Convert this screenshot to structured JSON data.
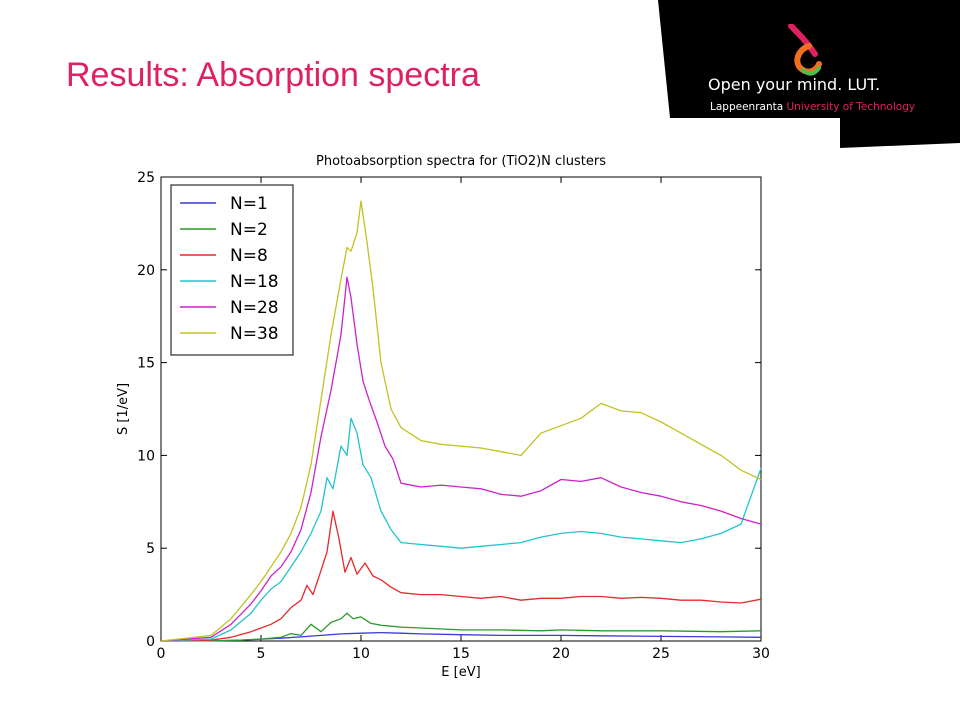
{
  "slide": {
    "title": "Results: Absorption spectra"
  },
  "logo": {
    "slogan": "Open your mind. LUT.",
    "sub_part1": "Lappeenranta",
    "sub_part2": "University of Technology",
    "mark_icon": "lut-ampersand-logo-icon",
    "colors": {
      "black": "#000000",
      "red": "#e0215f",
      "orange": "#f07020",
      "green": "#4cc04c"
    }
  },
  "chart_data": {
    "type": "line",
    "title": "Photoabsorption spectra for (TiO2)N clusters",
    "xlabel": "E [eV]",
    "ylabel": "S [1/eV]",
    "xlim": [
      0,
      30
    ],
    "ylim": [
      0,
      25
    ],
    "xticks": [
      "0",
      "5",
      "10",
      "15",
      "20",
      "25",
      "30"
    ],
    "yticks": [
      "0",
      "5",
      "10",
      "15",
      "20",
      "25"
    ],
    "grid": false,
    "legend_position": "top-left",
    "series": [
      {
        "name": "N=1",
        "color": "#3a3ad6",
        "x": [
          0,
          2,
          3,
          4,
          5,
          6,
          7,
          8,
          9,
          10,
          11,
          12,
          13,
          15,
          17,
          20,
          22,
          25,
          28,
          30
        ],
        "y": [
          0,
          0.01,
          0.02,
          0.05,
          0.1,
          0.15,
          0.22,
          0.3,
          0.38,
          0.42,
          0.45,
          0.42,
          0.38,
          0.34,
          0.3,
          0.3,
          0.28,
          0.25,
          0.22,
          0.2
        ]
      },
      {
        "name": "N=2",
        "color": "#2a9a2a",
        "x": [
          0,
          3,
          4,
          5,
          6,
          6.5,
          7,
          7.5,
          8,
          8.5,
          9,
          9.3,
          9.6,
          10,
          10.5,
          11,
          12,
          13,
          15,
          17,
          19,
          20,
          22,
          25,
          28,
          30
        ],
        "y": [
          0,
          0.02,
          0.05,
          0.1,
          0.2,
          0.4,
          0.3,
          0.9,
          0.5,
          1.0,
          1.2,
          1.5,
          1.2,
          1.3,
          0.95,
          0.85,
          0.75,
          0.7,
          0.6,
          0.6,
          0.55,
          0.6,
          0.55,
          0.55,
          0.5,
          0.55
        ]
      },
      {
        "name": "N=8",
        "color": "#e52a2a",
        "x": [
          0,
          2.5,
          3.5,
          4.5,
          5,
          5.5,
          6,
          6.5,
          7,
          7.3,
          7.6,
          8,
          8.3,
          8.6,
          8.9,
          9.2,
          9.5,
          9.8,
          10.2,
          10.6,
          11,
          11.5,
          12,
          13,
          14,
          15,
          16,
          17,
          18,
          19,
          20,
          21,
          22,
          23,
          24,
          25,
          26,
          27,
          28,
          29,
          30
        ],
        "y": [
          0,
          0.05,
          0.2,
          0.5,
          0.7,
          0.9,
          1.2,
          1.8,
          2.2,
          3.0,
          2.5,
          3.8,
          4.8,
          7.0,
          5.5,
          3.7,
          4.5,
          3.6,
          4.2,
          3.5,
          3.3,
          2.9,
          2.6,
          2.5,
          2.5,
          2.4,
          2.3,
          2.4,
          2.2,
          2.3,
          2.3,
          2.4,
          2.4,
          2.3,
          2.35,
          2.3,
          2.2,
          2.2,
          2.1,
          2.05,
          2.25
        ]
      },
      {
        "name": "N=18",
        "color": "#22c4cc",
        "x": [
          0,
          2.5,
          3.5,
          4.5,
          5,
          5.5,
          6,
          6.5,
          7,
          7.5,
          8,
          8.3,
          8.6,
          9,
          9.3,
          9.5,
          9.8,
          10.1,
          10.5,
          11,
          11.5,
          12,
          13,
          14,
          15,
          16,
          17,
          18,
          19,
          20,
          21,
          22,
          23,
          24,
          25,
          26,
          27,
          28,
          29,
          29.5,
          30
        ],
        "y": [
          0,
          0.1,
          0.6,
          1.5,
          2.2,
          2.8,
          3.2,
          4.0,
          4.8,
          5.8,
          7.0,
          8.8,
          8.2,
          10.5,
          10.0,
          12.0,
          11.2,
          9.5,
          8.8,
          7.0,
          6.0,
          5.3,
          5.2,
          5.1,
          5.0,
          5.1,
          5.2,
          5.3,
          5.6,
          5.8,
          5.9,
          5.8,
          5.6,
          5.5,
          5.4,
          5.3,
          5.5,
          5.8,
          6.3,
          7.8,
          9.3
        ]
      },
      {
        "name": "N=28",
        "color": "#cc22cc",
        "x": [
          0,
          2.5,
          3.5,
          4.5,
          5,
          5.5,
          6,
          6.5,
          7,
          7.5,
          8,
          8.5,
          9,
          9.3,
          9.5,
          9.8,
          10.1,
          10.4,
          10.8,
          11.2,
          11.6,
          12,
          13,
          14,
          15,
          16,
          17,
          18,
          19,
          20,
          21,
          22,
          23,
          24,
          25,
          26,
          27,
          28,
          29,
          30
        ],
        "y": [
          0,
          0.2,
          0.9,
          2.0,
          2.7,
          3.5,
          4.0,
          4.8,
          6.0,
          8.0,
          11.0,
          13.5,
          16.5,
          19.6,
          18.5,
          16.0,
          14.0,
          13.0,
          11.8,
          10.5,
          9.8,
          8.5,
          8.3,
          8.4,
          8.3,
          8.2,
          7.9,
          7.8,
          8.1,
          8.7,
          8.6,
          8.8,
          8.3,
          8.0,
          7.8,
          7.5,
          7.3,
          7.0,
          6.6,
          6.3
        ]
      },
      {
        "name": "N=38",
        "color": "#c2c222",
        "x": [
          0,
          2.5,
          3.5,
          4.5,
          5,
          5.5,
          6,
          6.5,
          7,
          7.5,
          8,
          8.5,
          9,
          9.3,
          9.5,
          9.8,
          10.0,
          10.3,
          10.6,
          11,
          11.5,
          12,
          13,
          14,
          15,
          16,
          17,
          18,
          19,
          20,
          21,
          22,
          23,
          24,
          25,
          26,
          27,
          28,
          29,
          30
        ],
        "y": [
          0,
          0.3,
          1.2,
          2.5,
          3.2,
          4.0,
          4.8,
          5.8,
          7.2,
          9.5,
          13.0,
          16.5,
          19.5,
          21.2,
          21.0,
          22.0,
          23.7,
          21.5,
          19.0,
          15.0,
          12.5,
          11.5,
          10.8,
          10.6,
          10.5,
          10.4,
          10.2,
          10.0,
          11.2,
          11.6,
          12.0,
          12.8,
          12.4,
          12.3,
          11.8,
          11.2,
          10.6,
          10.0,
          9.2,
          8.7
        ]
      }
    ]
  }
}
